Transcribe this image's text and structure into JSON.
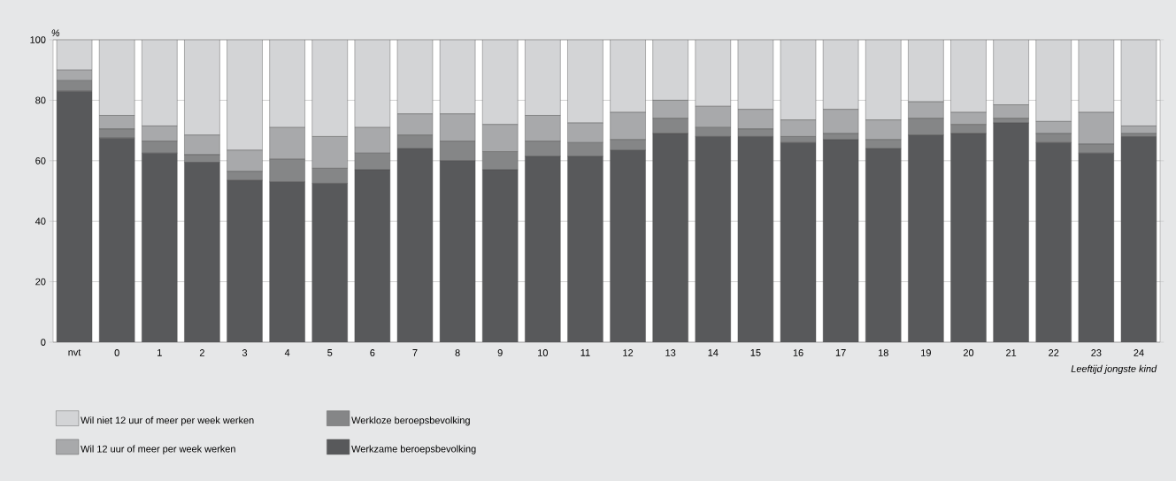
{
  "chart_data": {
    "type": "bar",
    "stacked": true,
    "ylabel": "%",
    "xlabel": "Leeftijd jongste kind",
    "categories": [
      "nvt",
      "0",
      "1",
      "2",
      "3",
      "4",
      "5",
      "6",
      "7",
      "8",
      "9",
      "10",
      "11",
      "12",
      "13",
      "14",
      "15",
      "16",
      "17",
      "18",
      "19",
      "20",
      "21",
      "22",
      "23",
      "24"
    ],
    "series": [
      {
        "name": "Werkzame beroepsbevolking",
        "color": "#58595b",
        "values": [
          83,
          67.5,
          62.5,
          59.5,
          53.5,
          53,
          52.5,
          57,
          64,
          60,
          57,
          61.5,
          61.5,
          63.5,
          69,
          68,
          68,
          66,
          67,
          64,
          68.5,
          69,
          72.5,
          66,
          62.5,
          68
        ]
      },
      {
        "name": "Werkloze beroepsbevolking",
        "color": "#858687",
        "values": [
          3.5,
          3,
          4,
          2.5,
          3,
          7.5,
          5,
          5.5,
          4.5,
          6.5,
          6,
          5,
          4.5,
          3.5,
          5,
          3,
          2.5,
          2,
          2,
          3,
          5.5,
          3,
          1.5,
          3,
          3,
          1
        ]
      },
      {
        "name": "Wil 12 uur of meer per week werken",
        "color": "#a8a9ab",
        "values": [
          3.5,
          4.5,
          5,
          6.5,
          7,
          10.5,
          10.5,
          8.5,
          7,
          9,
          9,
          8.5,
          6.5,
          9,
          6,
          7,
          6.5,
          5.5,
          8,
          6.5,
          5.5,
          4,
          4.5,
          4,
          10.5,
          2.5
        ]
      },
      {
        "name": "Wil niet 12 uur of meer per week werken",
        "color": "#d3d4d6",
        "values": [
          10,
          25,
          28.5,
          31.5,
          36.5,
          29,
          32,
          29,
          24.5,
          24.5,
          28,
          25,
          27.5,
          24,
          20,
          22,
          23,
          26.5,
          23,
          26.5,
          20.5,
          24,
          21.5,
          27,
          24,
          28.5
        ]
      }
    ],
    "ylim": [
      0,
      100
    ],
    "yticks": [
      0,
      20,
      40,
      60,
      80,
      100
    ],
    "grid": "y",
    "legend": "bottom"
  }
}
